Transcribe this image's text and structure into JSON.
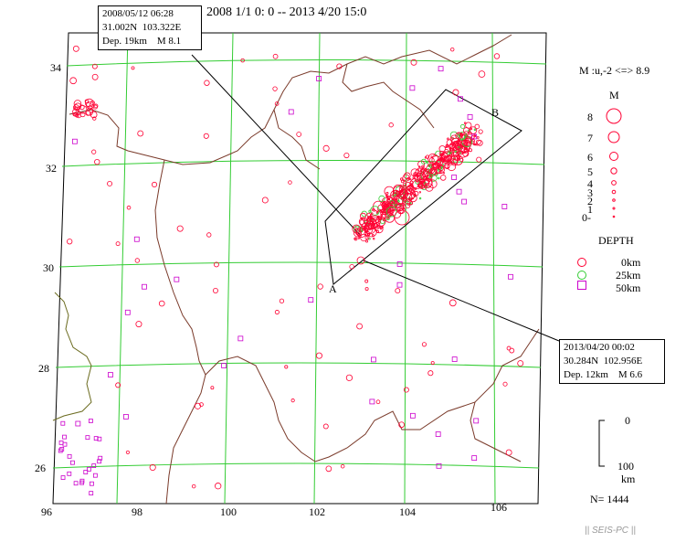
{
  "title": "2008 1/1 0: 0 -- 2013 4/20 15:0",
  "lat_labels": [
    "34",
    "32",
    "30",
    "28",
    "26"
  ],
  "lon_labels": [
    "96",
    "98",
    "100",
    "102",
    "104",
    "106"
  ],
  "event1": {
    "line1": "2008/05/12 06:28",
    "line2": "31.002N  103.322E",
    "line3": "Dep. 19km    M 8.1"
  },
  "event2": {
    "line1": "2013/04/20 00:02",
    "line2": "30.284N  102.956E",
    "line3": "Dep. 12km    M 6.6"
  },
  "profile": {
    "a": "A",
    "b": "B"
  },
  "legend": {
    "mag_range": "M :u,-2 <=> 8.9",
    "mag_title": "M",
    "mags": [
      "8",
      "7",
      "6",
      "5",
      "4",
      "3",
      "2",
      "1",
      "0-"
    ],
    "depth_title": "DEPTH",
    "depths": [
      "0km",
      "25km",
      "50km"
    ],
    "scale_top": "0",
    "scale_bottom": "100",
    "scale_unit": "km",
    "count": "N= 1444"
  },
  "colors": {
    "grid": "#33cc33",
    "shallow": "#ff0033",
    "deep": "#cc00cc",
    "border": "#7a3a2a",
    "coast": "#6b6b1f"
  },
  "footer": "|| SEIS-PC ||"
}
